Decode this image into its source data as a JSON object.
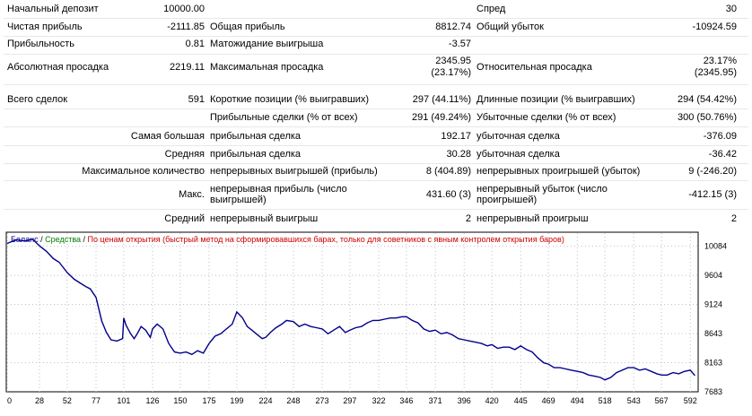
{
  "stats": {
    "r1": {
      "l1": "Начальный депозит",
      "v1": "10000.00",
      "l3": "Спред",
      "v3": "30"
    },
    "r2": {
      "l1": "Чистая прибыль",
      "v1": "-2111.85",
      "l2": "Общая прибыль",
      "v2": "8812.74",
      "l3": "Общий убыток",
      "v3": "-10924.59"
    },
    "r3": {
      "l1": "Прибыльность",
      "v1": "0.81",
      "l2": "Матожидание выигрыша",
      "v2": "-3.57"
    },
    "r4": {
      "l1": "Абсолютная просадка",
      "v1": "2219.11",
      "l2": "Максимальная просадка",
      "v2a": "2345.95",
      "v2b": "(23.17%)",
      "l3": "Относительная просадка",
      "v3a": "23.17%",
      "v3b": "(2345.95)"
    },
    "r5": {
      "l1": "Всего сделок",
      "v1": "591",
      "l2": "Короткие позиции (% выигравших)",
      "v2": "297 (44.11%)",
      "l3": "Длинные позиции (% выигравших)",
      "v3": "294 (54.42%)"
    },
    "r6": {
      "l2": "Прибыльные сделки (% от всех)",
      "v2": "291 (49.24%)",
      "l3": "Убыточные сделки (% от всех)",
      "v3": "300 (50.76%)"
    },
    "r7": {
      "l1": "Самая большая",
      "l2": "прибыльная сделка",
      "v2": "192.17",
      "l3": "убыточная сделка",
      "v3": "-376.09"
    },
    "r8": {
      "l1": "Средняя",
      "l2": "прибыльная сделка",
      "v2": "30.28",
      "l3": "убыточная сделка",
      "v3": "-36.42"
    },
    "r9": {
      "l1": "Максимальное количество",
      "l2": "непрерывных выигрышей (прибыль)",
      "v2": "8 (404.89)",
      "l3": "непрерывных проигрышей (убыток)",
      "v3": "9 (-246.20)"
    },
    "r10": {
      "l1": "Макс.",
      "l2": "непрерывная прибыль (число выигрышей)",
      "v2": "431.60 (3)",
      "l3": "непрерывный убыток (число проигрышей)",
      "v3": "-412.15 (3)"
    },
    "r11": {
      "l1": "Средний",
      "l2": "непрерывный выигрыш",
      "v2": "2",
      "l3": "непрерывный проигрыш",
      "v3": "2"
    }
  },
  "chart_legend": {
    "balance": "Баланс",
    "sep1": " / ",
    "equity": "Средства",
    "sep2": " / ",
    "mode": "По ценам открытия (быстрый метод на сформировавшихся барах, только для советников с явным контролем открытия баров)"
  },
  "colors": {
    "balance": "#00008b",
    "equity": "#008000",
    "mode": "#cc0000",
    "grid": "#c0c0c0"
  },
  "chart_data": {
    "type": "line",
    "xlabel": "",
    "ylabel": "",
    "x_ticks": [
      0,
      28,
      52,
      77,
      101,
      126,
      150,
      175,
      199,
      224,
      248,
      273,
      297,
      322,
      346,
      371,
      396,
      420,
      445,
      469,
      494,
      518,
      543,
      567,
      592
    ],
    "y_ticks": [
      10084,
      9604,
      9124,
      8643,
      8163,
      7683
    ],
    "xlim": [
      0,
      598
    ],
    "ylim": [
      7683,
      10300
    ],
    "grid": true,
    "series": [
      {
        "name": "Баланс",
        "x": [
          0,
          8,
          15,
          22,
          28,
          34,
          40,
          45,
          52,
          58,
          63,
          68,
          72,
          77,
          82,
          86,
          90,
          95,
          100,
          101,
          103,
          107,
          110,
          113,
          116,
          120,
          124,
          126,
          130,
          135,
          140,
          145,
          150,
          155,
          160,
          165,
          170,
          175,
          180,
          185,
          190,
          195,
          199,
          204,
          208,
          212,
          217,
          221,
          224,
          228,
          233,
          238,
          242,
          248,
          253,
          258,
          263,
          268,
          273,
          278,
          283,
          288,
          293,
          297,
          302,
          307,
          312,
          317,
          322,
          327,
          332,
          337,
          342,
          346,
          351,
          356,
          361,
          366,
          371,
          376,
          381,
          386,
          391,
          396,
          401,
          406,
          411,
          416,
          420,
          425,
          430,
          435,
          440,
          445,
          450,
          455,
          460,
          465,
          469,
          474,
          479,
          484,
          489,
          494,
          499,
          504,
          509,
          514,
          518,
          523,
          528,
          533,
          538,
          543,
          548,
          553,
          558,
          563,
          567,
          572,
          577,
          582,
          587,
          592,
          596
        ],
        "values": [
          10130,
          10190,
          10170,
          10200,
          10090,
          10000,
          9880,
          9820,
          9650,
          9540,
          9480,
          9420,
          9380,
          9240,
          8850,
          8660,
          8540,
          8520,
          8560,
          8900,
          8780,
          8640,
          8560,
          8650,
          8760,
          8700,
          8580,
          8720,
          8800,
          8720,
          8480,
          8340,
          8320,
          8340,
          8300,
          8360,
          8320,
          8480,
          8600,
          8640,
          8720,
          8800,
          9000,
          8900,
          8760,
          8700,
          8620,
          8560,
          8580,
          8660,
          8740,
          8800,
          8860,
          8840,
          8760,
          8800,
          8760,
          8740,
          8720,
          8640,
          8700,
          8760,
          8660,
          8700,
          8740,
          8760,
          8820,
          8860,
          8860,
          8880,
          8900,
          8900,
          8920,
          8920,
          8860,
          8820,
          8720,
          8680,
          8700,
          8640,
          8660,
          8620,
          8560,
          8540,
          8520,
          8500,
          8480,
          8440,
          8460,
          8400,
          8420,
          8420,
          8380,
          8440,
          8380,
          8340,
          8240,
          8160,
          8140,
          8080,
          8080,
          8060,
          8040,
          8020,
          8000,
          7960,
          7940,
          7920,
          7880,
          7920,
          8000,
          8040,
          8080,
          8080,
          8040,
          8060,
          8020,
          7980,
          7960,
          7960,
          8000,
          7980,
          8020,
          8040,
          7950
        ]
      }
    ]
  }
}
